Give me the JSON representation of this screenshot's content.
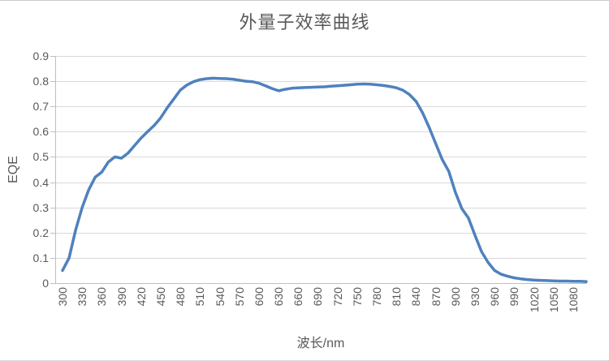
{
  "chart_data": {
    "type": "line",
    "title": "外量子效率曲线",
    "xlabel": "波长/nm",
    "ylabel": "EQE",
    "legend": "none",
    "grid": "horizontal",
    "xlim": [
      300,
      1100
    ],
    "ylim": [
      0,
      0.9
    ],
    "xticks": [
      "300",
      "330",
      "360",
      "390",
      "420",
      "450",
      "480",
      "510",
      "540",
      "570",
      "600",
      "630",
      "660",
      "690",
      "720",
      "750",
      "780",
      "810",
      "840",
      "870",
      "900",
      "930",
      "960",
      "990",
      "1020",
      "1050",
      "1080"
    ],
    "yticks": [
      "0",
      "0.1",
      "0.2",
      "0.3",
      "0.4",
      "0.5",
      "0.6",
      "0.7",
      "0.8",
      "0.9"
    ],
    "x": [
      300,
      310,
      320,
      330,
      340,
      350,
      360,
      370,
      380,
      390,
      400,
      410,
      420,
      430,
      440,
      450,
      460,
      470,
      480,
      490,
      500,
      510,
      520,
      530,
      540,
      550,
      560,
      570,
      580,
      590,
      600,
      610,
      620,
      630,
      640,
      650,
      660,
      670,
      680,
      690,
      700,
      710,
      720,
      730,
      740,
      750,
      760,
      770,
      780,
      790,
      800,
      810,
      820,
      830,
      840,
      850,
      860,
      870,
      880,
      890,
      900,
      910,
      920,
      930,
      940,
      950,
      960,
      970,
      980,
      990,
      1000,
      1010,
      1020,
      1030,
      1040,
      1050,
      1060,
      1070,
      1080,
      1090,
      1100
    ],
    "values": [
      0.05,
      0.1,
      0.21,
      0.3,
      0.37,
      0.42,
      0.44,
      0.48,
      0.5,
      0.495,
      0.515,
      0.545,
      0.575,
      0.6,
      0.625,
      0.655,
      0.695,
      0.73,
      0.765,
      0.785,
      0.798,
      0.806,
      0.81,
      0.812,
      0.811,
      0.81,
      0.808,
      0.804,
      0.8,
      0.798,
      0.792,
      0.782,
      0.771,
      0.762,
      0.768,
      0.772,
      0.774,
      0.775,
      0.776,
      0.777,
      0.778,
      0.78,
      0.782,
      0.784,
      0.786,
      0.788,
      0.789,
      0.788,
      0.786,
      0.783,
      0.779,
      0.774,
      0.764,
      0.747,
      0.72,
      0.675,
      0.617,
      0.553,
      0.49,
      0.443,
      0.36,
      0.295,
      0.258,
      0.19,
      0.125,
      0.082,
      0.05,
      0.035,
      0.027,
      0.021,
      0.017,
      0.014,
      0.012,
      0.011,
      0.01,
      0.009,
      0.008,
      0.008,
      0.007,
      0.007,
      0.006
    ],
    "colors": {
      "line": "#4F81BD",
      "gridline": "#D9D9D9",
      "axis": "#BFBFBF",
      "text": "#595959"
    }
  }
}
